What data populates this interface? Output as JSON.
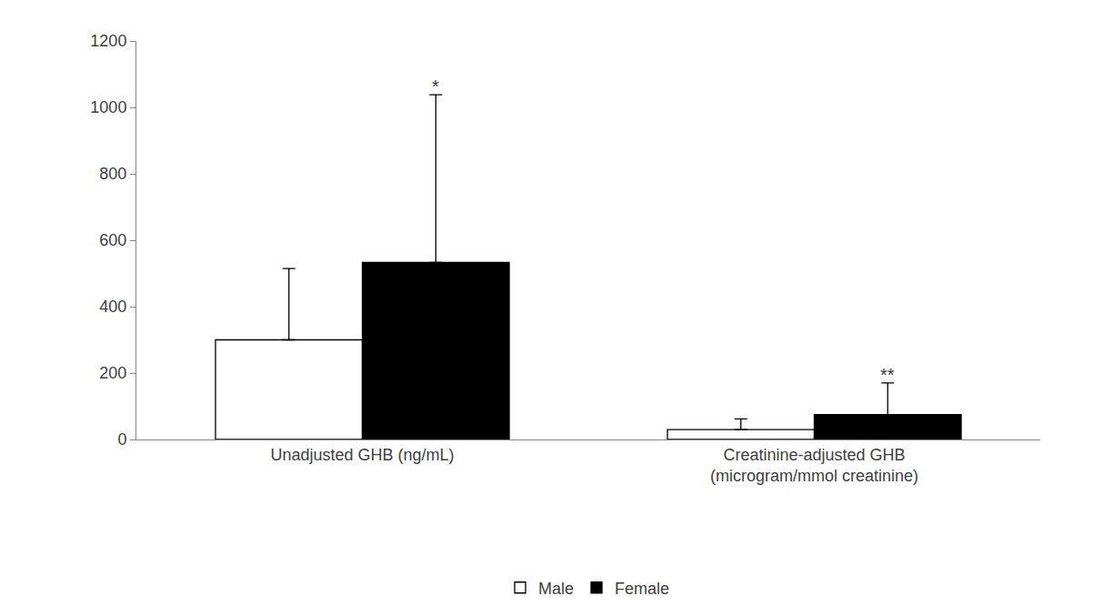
{
  "chart_data": {
    "type": "bar",
    "categories": [
      "Unadjusted GHB (ng/mL)",
      "Creatinine-adjusted GHB (microgram/mmol creatinine)"
    ],
    "series": [
      {
        "name": "Male",
        "color": "#ffffff",
        "values": [
          300,
          30
        ],
        "errors": [
          215,
          32
        ]
      },
      {
        "name": "Female",
        "color": "#000000",
        "values": [
          533,
          75
        ],
        "errors": [
          505,
          95
        ]
      }
    ],
    "annotations": [
      {
        "text": "*",
        "category": "Unadjusted GHB (ng/mL)",
        "series": "Female"
      },
      {
        "text": "**",
        "category": "Creatinine-adjusted GHB (microgram/mmol creatinine)",
        "series": "Female"
      }
    ],
    "ylim": [
      0,
      1200
    ],
    "yticks": [
      0,
      200,
      400,
      600,
      800,
      1000,
      1200
    ],
    "grid": false,
    "legend": "bottom"
  }
}
